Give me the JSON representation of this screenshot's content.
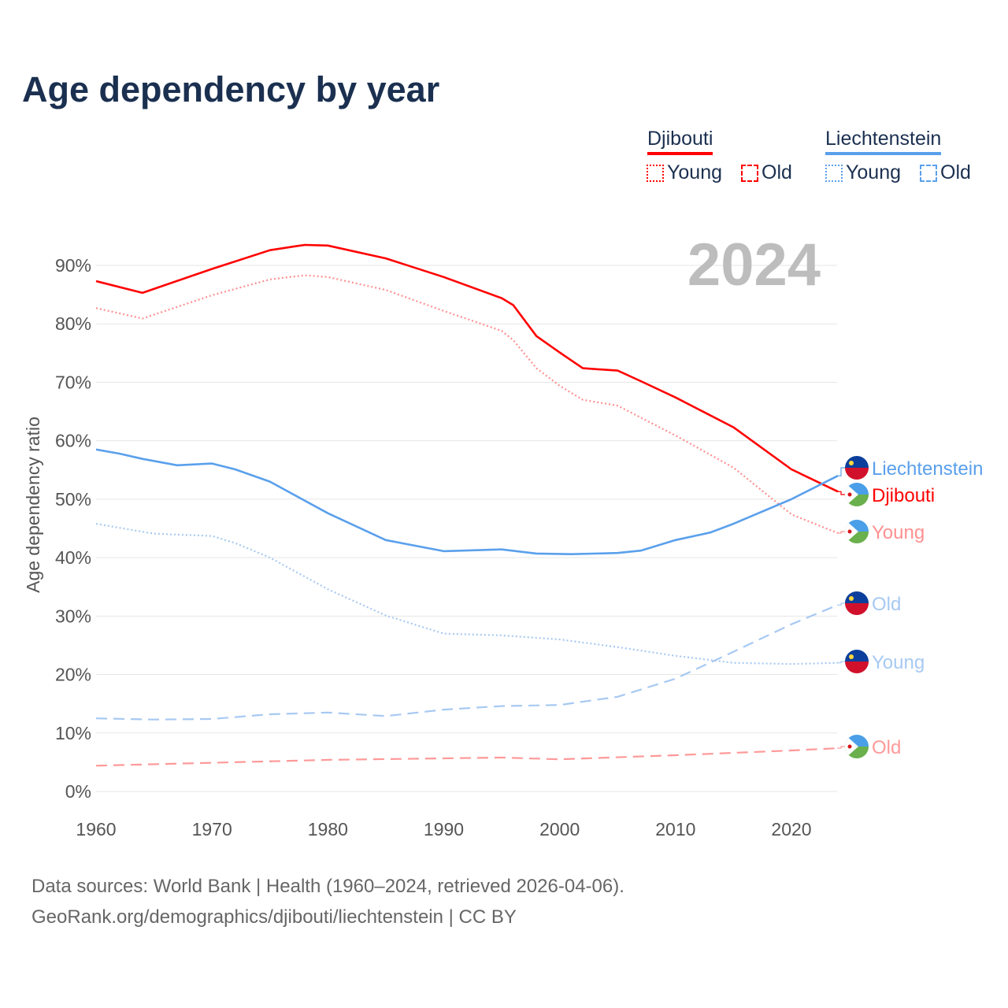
{
  "title": "Age dependency by year",
  "legend": {
    "groups": [
      {
        "country": "Djibouti",
        "color": "#ff0000",
        "light": "#ff9999",
        "young": "Young",
        "old": "Old"
      },
      {
        "country": "Liechtenstein",
        "color": "#5aa0ec",
        "light": "#a7c9f2",
        "young": "Young",
        "old": "Old"
      }
    ]
  },
  "year_label": "2024",
  "footer": {
    "line1": "Data sources: World Bank | Health (1960–2024, retrieved 2026-04-06).",
    "line2": "GeoRank.org/demographics/djibouti/liechtenstein | CC BY"
  },
  "chart_data": {
    "type": "line",
    "title": "Age dependency by year",
    "xlabel": "",
    "ylabel": "Age dependency ratio",
    "xlim": [
      1960,
      2024
    ],
    "ylim": [
      0,
      90
    ],
    "xticks": [
      "1960",
      "1970",
      "1980",
      "1990",
      "2000",
      "2010",
      "2020"
    ],
    "yticks": [
      "0%",
      "10%",
      "20%",
      "30%",
      "40%",
      "50%",
      "60%",
      "70%",
      "80%",
      "90%"
    ],
    "grid": true,
    "series": [
      {
        "name": "Djibouti",
        "label": "Djibouti",
        "flag": "djibouti",
        "style": "solid",
        "color": "#ff0000",
        "x": [
          1960,
          1964,
          1970,
          1975,
          1978,
          1980,
          1985,
          1990,
          1995,
          1996,
          1998,
          2000,
          2002,
          2005,
          2007,
          2010,
          2015,
          2020,
          2024
        ],
        "y": [
          87.3,
          85.3,
          89.4,
          92.6,
          93.5,
          93.4,
          91.2,
          88.0,
          84.4,
          83.2,
          77.9,
          75.1,
          72.4,
          72.0,
          70.2,
          67.4,
          62.3,
          55.1,
          51.3
        ]
      },
      {
        "name": "Djibouti Young",
        "label": "Young",
        "flag": "djibouti",
        "style": "dotted",
        "color": "#ff9090",
        "x": [
          1960,
          1964,
          1970,
          1975,
          1978,
          1980,
          1985,
          1990,
          1995,
          1996,
          1998,
          2000,
          2002,
          2005,
          2010,
          2015,
          2020,
          2024
        ],
        "y": [
          82.7,
          80.9,
          84.9,
          87.6,
          88.3,
          88.0,
          85.8,
          82.2,
          78.8,
          77.2,
          72.4,
          69.4,
          67.0,
          66.0,
          60.9,
          55.4,
          47.4,
          44.2
        ]
      },
      {
        "name": "Djibouti Old",
        "label": "Old",
        "flag": "djibouti",
        "style": "dashed",
        "color": "#ff9999",
        "x": [
          1960,
          1980,
          1995,
          2000,
          2010,
          2020,
          2024
        ],
        "y": [
          4.4,
          5.4,
          5.8,
          5.5,
          6.2,
          7.0,
          7.4
        ]
      },
      {
        "name": "Liechtenstein",
        "label": "Liechtenstein",
        "flag": "liechtenstein",
        "style": "solid",
        "color": "#5aa0ec",
        "x": [
          1960,
          1962,
          1964,
          1967,
          1970,
          1972,
          1975,
          1980,
          1985,
          1990,
          1995,
          1998,
          2001,
          2005,
          2007,
          2010,
          2013,
          2015,
          2020,
          2024
        ],
        "y": [
          58.5,
          57.8,
          56.9,
          55.8,
          56.1,
          55.1,
          53.0,
          47.6,
          43.0,
          41.1,
          41.4,
          40.7,
          40.6,
          40.8,
          41.2,
          43.0,
          44.3,
          45.8,
          50.0,
          54.0
        ]
      },
      {
        "name": "Liechtenstein Young",
        "label": "Young",
        "flag": "liechtenstein",
        "style": "dotted",
        "color": "#a7c9f2",
        "x": [
          1960,
          1965,
          1970,
          1972,
          1975,
          1980,
          1985,
          1990,
          1995,
          2000,
          2005,
          2010,
          2015,
          2020,
          2024
        ],
        "y": [
          45.8,
          44.1,
          43.7,
          42.5,
          40.0,
          34.6,
          30.1,
          27.0,
          26.7,
          26.0,
          24.7,
          23.2,
          22.0,
          21.8,
          22.0
        ]
      },
      {
        "name": "Liechtenstein Old",
        "label": "Old",
        "flag": "liechtenstein",
        "style": "dashed",
        "color": "#a7c9f2",
        "x": [
          1960,
          1965,
          1970,
          1975,
          1980,
          1985,
          1990,
          1995,
          2000,
          2005,
          2010,
          2015,
          2020,
          2024
        ],
        "y": [
          12.5,
          12.3,
          12.4,
          13.2,
          13.5,
          12.9,
          14.0,
          14.6,
          14.8,
          16.2,
          19.3,
          23.9,
          28.6,
          31.9
        ]
      }
    ]
  }
}
